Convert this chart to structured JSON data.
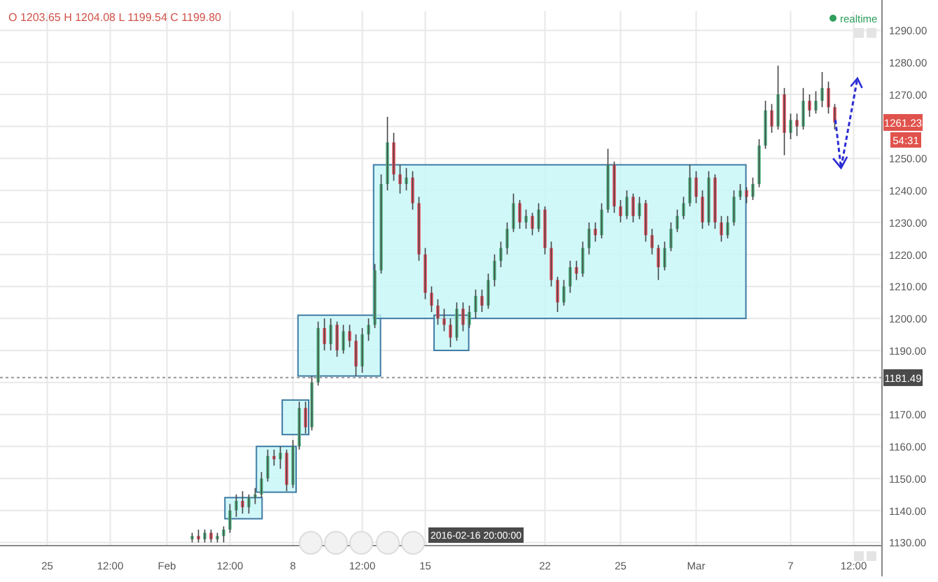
{
  "chart_data": {
    "type": "candlestick",
    "categories": [
      null,
      null,
      null,
      null,
      null,
      null,
      null,
      "25",
      null,
      null,
      null,
      null,
      null,
      null,
      null,
      null,
      null,
      "12:00",
      null,
      null,
      null,
      null,
      null,
      null,
      null,
      null,
      "Feb",
      null,
      null,
      null,
      null,
      null,
      null,
      null,
      null,
      null,
      "12:00",
      null,
      null,
      null,
      null,
      null,
      null,
      null,
      null,
      null,
      "8",
      null,
      null,
      null,
      null,
      null,
      null,
      null,
      null,
      null,
      null,
      "12:00",
      null,
      null,
      null,
      null,
      null,
      null,
      null,
      null,
      null,
      "15",
      null,
      null,
      null,
      null,
      null,
      null,
      null,
      null,
      null,
      null,
      null,
      null,
      null,
      null,
      null,
      null,
      null,
      null,
      "22",
      null,
      null,
      null,
      null,
      null,
      null,
      null,
      null,
      null,
      null,
      null,
      "25",
      null,
      null,
      null,
      null,
      null,
      null,
      null,
      null,
      null,
      null,
      null,
      "Mar",
      null,
      null,
      null,
      null,
      null,
      null,
      null,
      null,
      null,
      null,
      null,
      null,
      null,
      null,
      "7",
      null,
      null,
      null,
      null,
      null,
      null,
      null,
      null,
      null,
      "12:00",
      null,
      null,
      null,
      null
    ],
    "ohlc": [
      null,
      null,
      null,
      null,
      null,
      null,
      null,
      null,
      null,
      null,
      null,
      null,
      null,
      null,
      null,
      null,
      null,
      null,
      null,
      null,
      null,
      null,
      null,
      null,
      null,
      null,
      null,
      null,
      null,
      null,
      [
        1131,
        1133,
        1130,
        1132
      ],
      [
        1132,
        1134,
        1130,
        1131
      ],
      [
        1131,
        1134,
        1130,
        1133
      ],
      [
        1133,
        1134,
        1130,
        1131
      ],
      [
        1131,
        1133,
        1130,
        1132
      ],
      [
        1132,
        1135,
        1130,
        1134
      ],
      [
        1134,
        1142,
        1133,
        1140
      ],
      [
        1140,
        1145,
        1138,
        1143
      ],
      [
        1143,
        1146,
        1139,
        1141
      ],
      [
        1141,
        1145,
        1139,
        1144
      ],
      [
        1144,
        1147,
        1142,
        1145
      ],
      [
        1145,
        1152,
        1144,
        1150
      ],
      [
        1150,
        1159,
        1149,
        1157
      ],
      [
        1157,
        1159,
        1154,
        1156
      ],
      [
        1156,
        1160,
        1153,
        1158
      ],
      [
        1158,
        1159,
        1146,
        1148
      ],
      [
        1148,
        1162,
        1147,
        1160
      ],
      [
        1160,
        1174,
        1159,
        1172
      ],
      [
        1172,
        1174,
        1164,
        1166
      ],
      [
        1166,
        1182,
        1165,
        1180
      ],
      [
        1180,
        1199,
        1179,
        1197
      ],
      [
        1197,
        1200,
        1190,
        1192
      ],
      [
        1192,
        1200,
        1190,
        1198
      ],
      [
        1198,
        1199,
        1188,
        1190
      ],
      [
        1190,
        1198,
        1189,
        1196
      ],
      [
        1196,
        1198,
        1191,
        1193
      ],
      [
        1193,
        1195,
        1182,
        1185
      ],
      [
        1185,
        1197,
        1183,
        1195
      ],
      [
        1195,
        1200,
        1193,
        1198
      ],
      [
        1198,
        1217,
        1197,
        1215
      ],
      [
        1215,
        1245,
        1214,
        1242
      ],
      [
        1242,
        1263,
        1240,
        1255
      ],
      [
        1255,
        1258,
        1243,
        1245
      ],
      [
        1245,
        1248,
        1239,
        1242
      ],
      [
        1242,
        1247,
        1240,
        1244
      ],
      [
        1244,
        1246,
        1234,
        1236
      ],
      [
        1236,
        1238,
        1218,
        1220
      ],
      [
        1220,
        1222,
        1206,
        1208
      ],
      [
        1208,
        1210,
        1202,
        1204
      ],
      [
        1204,
        1206,
        1198,
        1200
      ],
      [
        1200,
        1203,
        1196,
        1198
      ],
      [
        1198,
        1200,
        1191,
        1194
      ],
      [
        1194,
        1205,
        1193,
        1203
      ],
      [
        1203,
        1205,
        1196,
        1198
      ],
      [
        1198,
        1204,
        1197,
        1202
      ],
      [
        1202,
        1209,
        1200,
        1207
      ],
      [
        1207,
        1209,
        1202,
        1204
      ],
      [
        1204,
        1214,
        1203,
        1212
      ],
      [
        1212,
        1220,
        1210,
        1218
      ],
      [
        1218,
        1224,
        1216,
        1222
      ],
      [
        1222,
        1230,
        1220,
        1228
      ],
      [
        1228,
        1239,
        1227,
        1236
      ],
      [
        1236,
        1237,
        1228,
        1230
      ],
      [
        1230,
        1234,
        1228,
        1232
      ],
      [
        1232,
        1233,
        1226,
        1228
      ],
      [
        1228,
        1236,
        1227,
        1234
      ],
      [
        1234,
        1235,
        1220,
        1222
      ],
      [
        1222,
        1224,
        1210,
        1212
      ],
      [
        1212,
        1213,
        1202,
        1205
      ],
      [
        1205,
        1212,
        1204,
        1210
      ],
      [
        1210,
        1218,
        1208,
        1216
      ],
      [
        1216,
        1218,
        1212,
        1214
      ],
      [
        1214,
        1224,
        1213,
        1222
      ],
      [
        1222,
        1230,
        1220,
        1228
      ],
      [
        1228,
        1230,
        1224,
        1226
      ],
      [
        1226,
        1236,
        1225,
        1234
      ],
      [
        1234,
        1253,
        1233,
        1248
      ],
      [
        1248,
        1249,
        1233,
        1235
      ],
      [
        1235,
        1237,
        1230,
        1232
      ],
      [
        1232,
        1240,
        1231,
        1238
      ],
      [
        1238,
        1239,
        1230,
        1232
      ],
      [
        1232,
        1238,
        1231,
        1236
      ],
      [
        1236,
        1237,
        1224,
        1226
      ],
      [
        1226,
        1228,
        1220,
        1222
      ],
      [
        1222,
        1223,
        1212,
        1216
      ],
      [
        1216,
        1224,
        1215,
        1222
      ],
      [
        1222,
        1230,
        1221,
        1228
      ],
      [
        1228,
        1234,
        1227,
        1232
      ],
      [
        1232,
        1238,
        1231,
        1236
      ],
      [
        1236,
        1248,
        1235,
        1244
      ],
      [
        1244,
        1246,
        1236,
        1238
      ],
      [
        1238,
        1240,
        1228,
        1230
      ],
      [
        1230,
        1246,
        1229,
        1244
      ],
      [
        1244,
        1245,
        1228,
        1230
      ],
      [
        1230,
        1232,
        1224,
        1226
      ],
      [
        1226,
        1232,
        1225,
        1230
      ],
      [
        1230,
        1240,
        1229,
        1238
      ],
      [
        1238,
        1242,
        1237,
        1240
      ],
      [
        1240,
        1241,
        1236,
        1238
      ],
      [
        1238,
        1244,
        1237,
        1242
      ],
      [
        1242,
        1256,
        1241,
        1254
      ],
      [
        1254,
        1268,
        1253,
        1265
      ],
      [
        1265,
        1267,
        1258,
        1260
      ],
      [
        1260,
        1279,
        1259,
        1270
      ],
      [
        1270,
        1272,
        1251,
        1258
      ],
      [
        1258,
        1264,
        1256,
        1262
      ],
      [
        1262,
        1264,
        1257,
        1260
      ],
      [
        1260,
        1272,
        1259,
        1268
      ],
      [
        1268,
        1270,
        1263,
        1265
      ],
      [
        1265,
        1271,
        1264,
        1268
      ],
      [
        1268,
        1277,
        1266,
        1272
      ],
      [
        1272,
        1274,
        1264,
        1266
      ],
      [
        1266,
        1267,
        1259,
        1261.23
      ],
      null,
      null,
      null,
      null,
      null,
      null,
      null
    ],
    "ylim": [
      1129,
      1296
    ],
    "yticks": [
      {
        "value": 1130,
        "label": "1130.00"
      },
      {
        "value": 1140,
        "label": "1140.00"
      },
      {
        "value": 1150,
        "label": "1150.00"
      },
      {
        "value": 1160,
        "label": "1160.00"
      },
      {
        "value": 1170,
        "label": "1170.00"
      },
      {
        "value": 1180,
        "label": null
      },
      {
        "value": 1190,
        "label": "1190.00"
      },
      {
        "value": 1200,
        "label": "1200.00"
      },
      {
        "value": 1210,
        "label": "1210.00"
      },
      {
        "value": 1220,
        "label": "1220.00"
      },
      {
        "value": 1230,
        "label": "1230.00"
      },
      {
        "value": 1240,
        "label": "1240.00"
      },
      {
        "value": 1250,
        "label": "1250.00"
      },
      {
        "value": 1260,
        "label": null
      },
      {
        "value": 1270,
        "label": "1270.00"
      },
      {
        "value": 1280,
        "label": "1280.00"
      },
      {
        "value": 1290,
        "label": "1290.00"
      }
    ],
    "grid": true,
    "ref_lines": [
      {
        "axis": "y",
        "value": 1181.49,
        "label": "1181.49",
        "color": "#999999",
        "line_style": "dotted"
      }
    ],
    "annotations": [
      "O 1203.65 H 1204.08 L 1199.54 C 1199.80",
      {
        "text": "1261.23",
        "y": 1261.23
      },
      "54:31",
      "realtime",
      "2016-02-16 20:00:00"
    ]
  }
}
